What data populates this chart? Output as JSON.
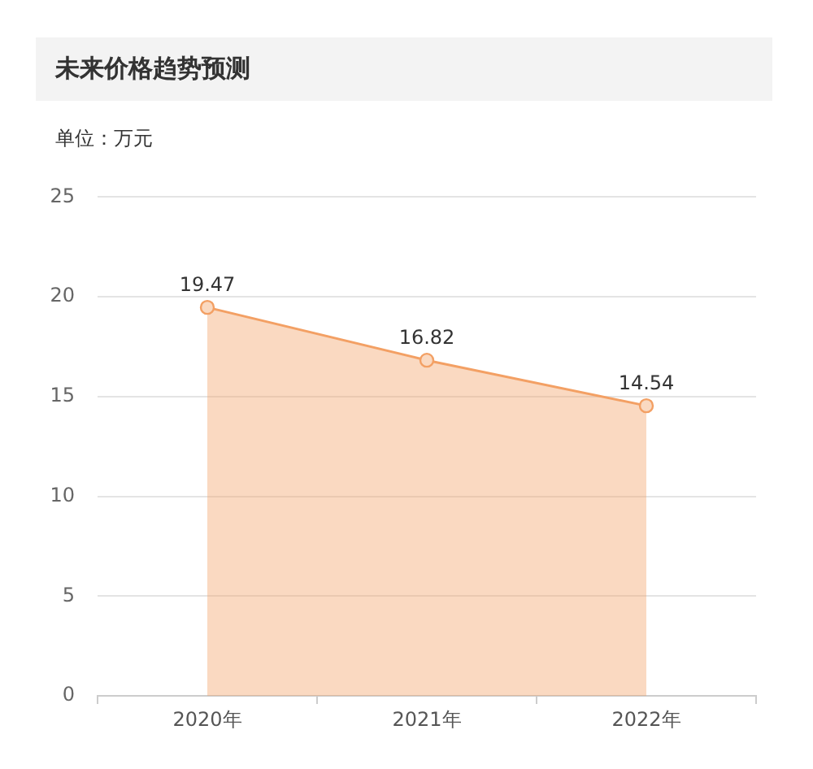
{
  "chart_data": {
    "type": "area",
    "title": "未来价格趋势预测",
    "ylabel": "单位：万元",
    "categories": [
      "2020年",
      "2021年",
      "2022年"
    ],
    "series": [
      {
        "color": "#f3a064",
        "values": [
          19.47,
          16.82,
          14.54
        ]
      }
    ],
    "ylim": [
      0,
      25
    ],
    "yticks": [
      0,
      5,
      10,
      15,
      20,
      25
    ],
    "grid": "y",
    "marker": "circle",
    "data_labels": true
  }
}
